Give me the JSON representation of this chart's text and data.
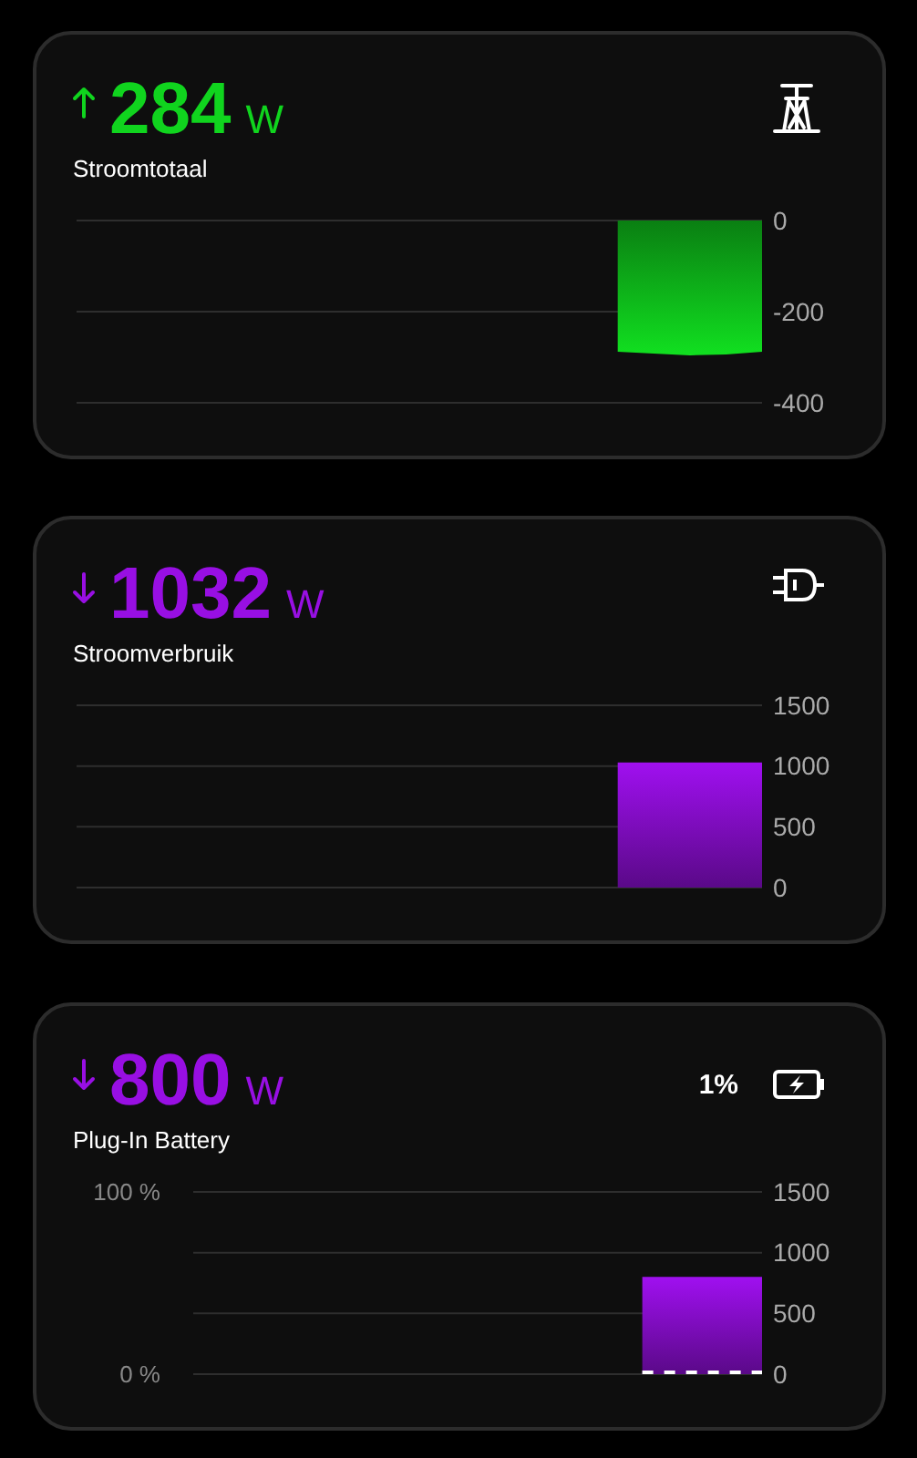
{
  "chart_data": [
    {
      "type": "area",
      "title": "Stroomtotaal",
      "annotations": [
        "284",
        "W"
      ],
      "categories": [
        null,
        null,
        null,
        null,
        null,
        null,
        null,
        null,
        null,
        null,
        null,
        null,
        null,
        null,
        null,
        null,
        null,
        null,
        null,
        null
      ],
      "ylim": [
        -400,
        0
      ],
      "yticks": [
        0,
        -200,
        -400
      ],
      "grid": "y",
      "series": [
        {
          "color": "#11e020",
          "values": [
            null,
            null,
            null,
            null,
            null,
            null,
            null,
            null,
            null,
            null,
            null,
            null,
            null,
            null,
            null,
            -288,
            -292,
            -296,
            -294,
            -288
          ]
        }
      ]
    },
    {
      "type": "area",
      "title": "Stroomverbruik",
      "annotations": [
        "1032",
        "W"
      ],
      "categories": [
        null,
        null,
        null,
        null,
        null,
        null,
        null,
        null,
        null,
        null,
        null,
        null,
        null,
        null,
        null,
        null,
        null,
        null,
        null,
        null
      ],
      "ylim": [
        0,
        1500
      ],
      "yticks": [
        0,
        500,
        1000,
        1500
      ],
      "grid": "y",
      "series": [
        {
          "color": "#a010f0",
          "values": [
            null,
            null,
            null,
            null,
            null,
            null,
            null,
            null,
            null,
            null,
            null,
            null,
            null,
            null,
            null,
            1030,
            1030,
            1030,
            1030,
            1030
          ]
        }
      ]
    },
    {
      "type": "area",
      "title": "Plug-In Battery",
      "annotations": [
        "800",
        "W",
        "1%"
      ],
      "categories": [
        null,
        null,
        null,
        null,
        null,
        null,
        null,
        null,
        null,
        null,
        null,
        null,
        null,
        null,
        null,
        null,
        null,
        null,
        null,
        null
      ],
      "ylim": [
        0,
        1500
      ],
      "yticks": [
        0,
        500,
        1000,
        1500
      ],
      "y2lim": [
        0,
        100
      ],
      "y2ticks": [
        {
          "value": 0,
          "label": "0 %"
        },
        {
          "value": 100,
          "label": "100 %"
        }
      ],
      "grid": "y",
      "series": [
        {
          "color": "#a010f0",
          "values": [
            null,
            null,
            null,
            null,
            null,
            null,
            null,
            null,
            null,
            null,
            null,
            null,
            null,
            null,
            null,
            800,
            800,
            800,
            800,
            800
          ]
        },
        {
          "type": "line",
          "axis": "y2",
          "color": "#ffffff",
          "line_style": "dashed",
          "values": [
            null,
            null,
            null,
            null,
            null,
            null,
            null,
            null,
            null,
            null,
            null,
            null,
            null,
            null,
            null,
            1,
            1,
            1,
            1,
            1
          ]
        }
      ]
    }
  ]
}
